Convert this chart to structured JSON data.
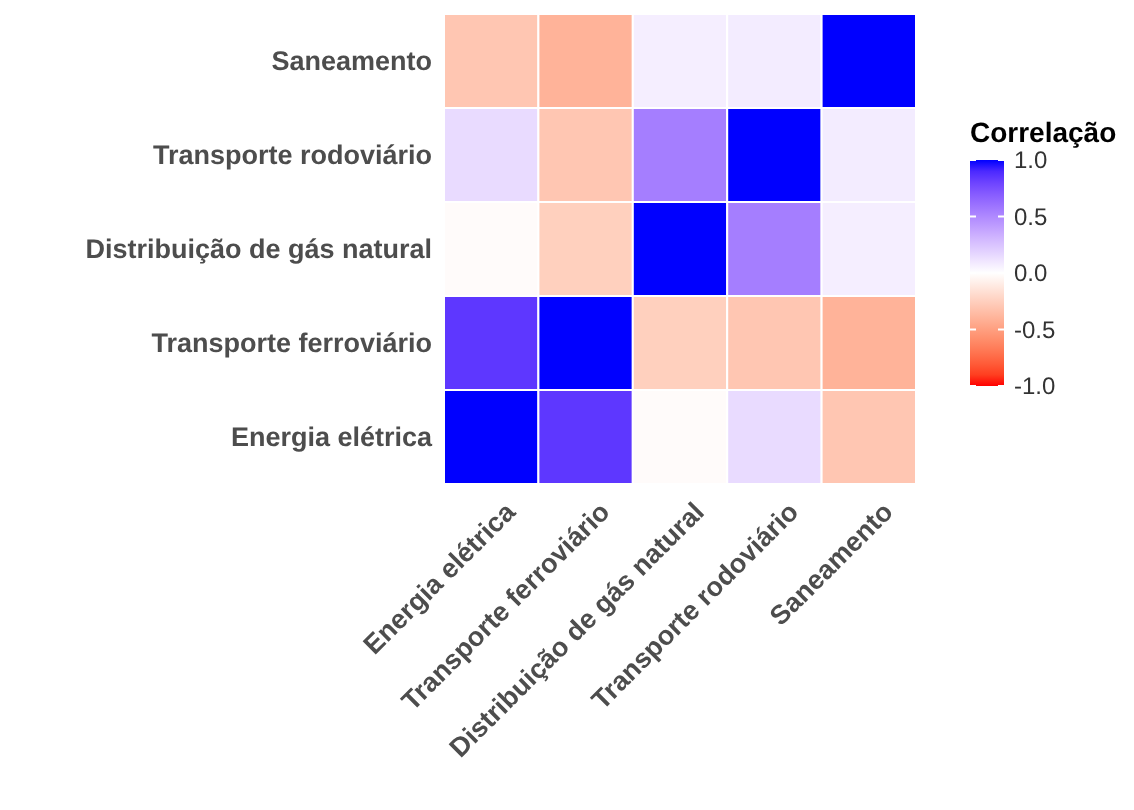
{
  "chart_data": {
    "type": "heatmap",
    "legend_title": "Correlação",
    "categories": [
      "Energia elétrica",
      "Transporte ferroviário",
      "Distribuição de gás natural",
      "Transporte rodoviário",
      "Saneamento"
    ],
    "y_categories": [
      "Saneamento",
      "Transporte rodoviário",
      "Distribuição de gás natural",
      "Transporte ferroviário",
      "Energia elétrica"
    ],
    "cells": [
      [
        -0.3,
        -0.4,
        0.07,
        0.08,
        1
      ],
      [
        0.15,
        -0.3,
        0.55,
        1,
        0.08
      ],
      [
        -0.02,
        -0.25,
        1,
        0.55,
        0.07
      ],
      [
        0.85,
        1,
        -0.25,
        -0.3,
        -0.4
      ],
      [
        1,
        0.85,
        -0.02,
        0.15,
        -0.3
      ]
    ],
    "clim": [
      -1,
      1
    ],
    "cticks": [
      {
        "value": -1,
        "label": "-1.0"
      },
      {
        "value": -0.5,
        "label": "-0.5"
      },
      {
        "value": 0,
        "label": "0.0"
      },
      {
        "value": 0.5,
        "label": "0.5"
      },
      {
        "value": 1,
        "label": "1.0"
      }
    ],
    "colors": [
      "#ff0000",
      "#ffffff",
      "#0000ff"
    ]
  }
}
